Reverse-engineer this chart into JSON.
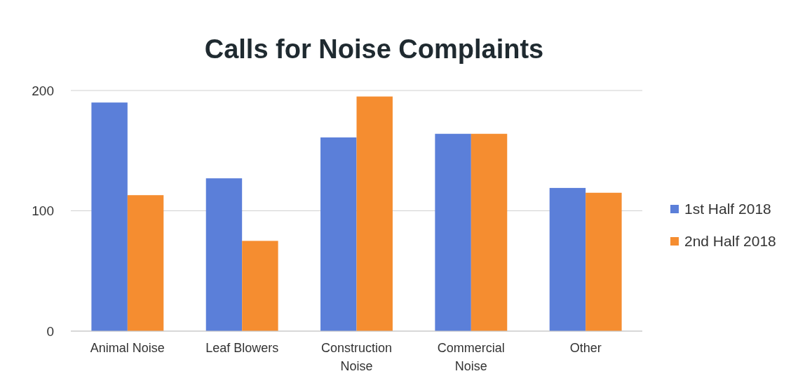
{
  "chart_data": {
    "type": "bar",
    "title": "Calls for Noise Complaints",
    "categories": [
      "Animal Noise",
      "Leaf Blowers",
      "Construction Noise",
      "Commercial Noise",
      "Other"
    ],
    "series": [
      {
        "name": "1st Half 2018",
        "color": "#5b7fd9",
        "values": [
          190,
          127,
          161,
          164,
          119
        ]
      },
      {
        "name": "2nd Half 2018",
        "color": "#f58d30",
        "values": [
          113,
          75,
          195,
          164,
          115
        ]
      }
    ],
    "ylim": [
      0,
      200
    ],
    "yticks": [
      0,
      100,
      200
    ],
    "grid": "y",
    "legend": "right"
  }
}
